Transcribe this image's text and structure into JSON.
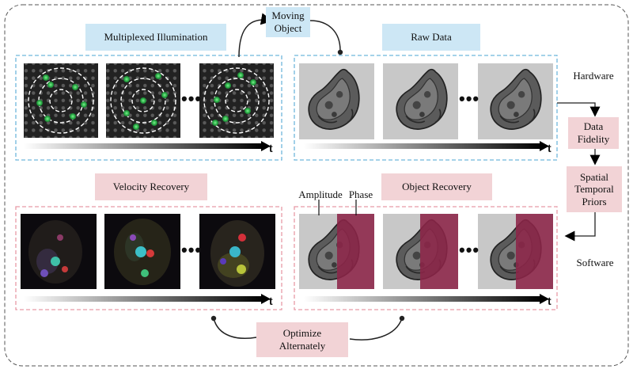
{
  "labels": {
    "multiplexed_illumination": "Multiplexed Illumination",
    "moving_object": "Moving\nObject",
    "raw_data": "Raw Data",
    "hardware": "Hardware",
    "data_fidelity": "Data\nFidelity",
    "spatial_temporal_priors": "Spatial\nTemporal\nPriors",
    "software": "Software",
    "velocity_recovery": "Velocity Recovery",
    "object_recovery": "Object Recovery",
    "amplitude": "Amplitude",
    "phase": "Phase",
    "optimize_alternately": "Optimize\nAlternately",
    "ellipsis": "•••",
    "time_axis": "t"
  },
  "colors": {
    "blue_tag": "#cde7f5",
    "pink_tag": "#f2d3d6",
    "blue_dashed": "#6fb6dc",
    "pink_dashed": "#e79aa6",
    "led_green": "#2fb34a",
    "phase_magenta": "#8c2448"
  }
}
